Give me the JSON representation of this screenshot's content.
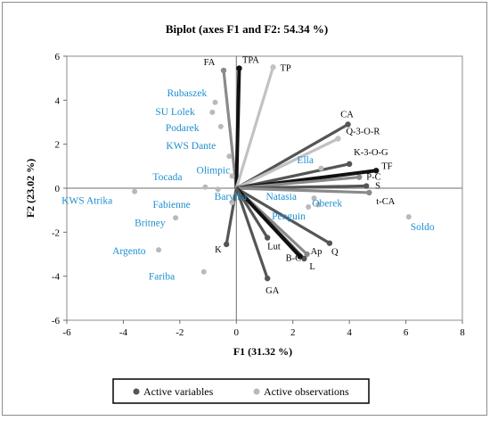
{
  "chart_data": {
    "type": "scatter",
    "title": "Biplot (axes F1 and F2: 54.34 %)",
    "xlabel": "F1 (31.32 %)",
    "ylabel": "F2 (23.02 %)",
    "xlim": [
      -6,
      8
    ],
    "ylim": [
      -6,
      6
    ],
    "xticks": [
      -6,
      -4,
      -2,
      0,
      2,
      4,
      6,
      8
    ],
    "yticks": [
      -6,
      -4,
      -2,
      0,
      2,
      4,
      6
    ],
    "grid": false,
    "legend_position": "bottom",
    "legend": [
      "Active variables",
      "Active observations"
    ],
    "series": [
      {
        "name": "Active variables",
        "points": [
          {
            "label": "FA",
            "x": -0.45,
            "y": 5.35,
            "shade": "mid"
          },
          {
            "label": "TPA",
            "x": 0.1,
            "y": 5.45,
            "shade": "black"
          },
          {
            "label": "TP",
            "x": 1.3,
            "y": 5.5,
            "shade": "light"
          },
          {
            "label": "CA",
            "x": 3.95,
            "y": 2.9,
            "shade": "dark"
          },
          {
            "label": "Q-3-O-R",
            "x": 3.6,
            "y": 2.25,
            "shade": "light"
          },
          {
            "label": "K-3-O-G",
            "x": 4.0,
            "y": 1.1,
            "shade": "dark"
          },
          {
            "label": "TF",
            "x": 4.95,
            "y": 0.8,
            "shade": "black"
          },
          {
            "label": "P-C",
            "x": 4.35,
            "y": 0.5,
            "shade": "mid"
          },
          {
            "label": "S",
            "x": 4.6,
            "y": 0.1,
            "shade": "dark"
          },
          {
            "label": "t-CA",
            "x": 4.7,
            "y": -0.2,
            "shade": "mid"
          },
          {
            "label": "Q",
            "x": 3.3,
            "y": -2.5,
            "shade": "dark"
          },
          {
            "label": "Ap",
            "x": 2.5,
            "y": -3.0,
            "shade": "mid"
          },
          {
            "label": "L",
            "x": 2.4,
            "y": -3.2,
            "shade": "dark"
          },
          {
            "label": "B-C",
            "x": 2.25,
            "y": -3.1,
            "shade": "black"
          },
          {
            "label": "Lut",
            "x": 1.1,
            "y": -2.25,
            "shade": "dark"
          },
          {
            "label": "GA",
            "x": 1.1,
            "y": -4.1,
            "shade": "dark"
          },
          {
            "label": "K",
            "x": -0.35,
            "y": -2.55,
            "shade": "dark"
          }
        ]
      },
      {
        "name": "Active observations",
        "points": [
          {
            "label": "Rubaszek",
            "x": -0.75,
            "y": 3.9
          },
          {
            "label": "SU Lolek",
            "x": -0.85,
            "y": 3.45
          },
          {
            "label": "Podarek",
            "x": -0.55,
            "y": 2.8
          },
          {
            "label": "KWS Dante",
            "x": -0.25,
            "y": 1.45
          },
          {
            "label": "Olimpic",
            "x": -0.15,
            "y": 0.55
          },
          {
            "label": "Tocada",
            "x": -1.1,
            "y": 0.05
          },
          {
            "label": "Barylka",
            "x": -0.65,
            "y": -0.05
          },
          {
            "label": "Fabienne",
            "x": -0.15,
            "y": -0.65
          },
          {
            "label": "KWS Atrika",
            "x": -3.6,
            "y": -0.15
          },
          {
            "label": "Britney",
            "x": -2.15,
            "y": -1.35
          },
          {
            "label": "Argento",
            "x": -2.75,
            "y": -2.8
          },
          {
            "label": "Fariba",
            "x": -1.15,
            "y": -3.8
          },
          {
            "label": "Natasia",
            "x": 2.75,
            "y": -0.45
          },
          {
            "label": "Ella",
            "x": 3.0,
            "y": 0.9
          },
          {
            "label": "Oberek",
            "x": 2.9,
            "y": -0.75
          },
          {
            "label": "Penguin",
            "x": 2.55,
            "y": -0.85
          },
          {
            "label": "Soldo",
            "x": 6.1,
            "y": -1.3
          }
        ]
      }
    ],
    "colors": {
      "black": "#111111",
      "dark": "#555555",
      "mid": "#8a8a8a",
      "light": "#c2c2c2",
      "observation_point": "#b9b9b9",
      "observation_label": "#1f8fd1"
    }
  }
}
